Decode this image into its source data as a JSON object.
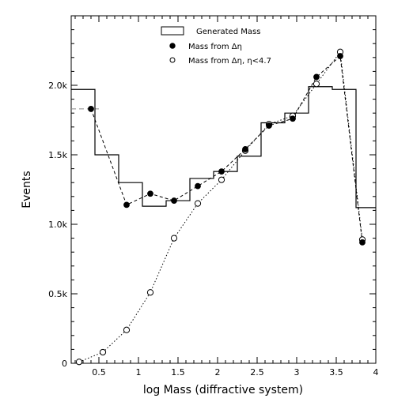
{
  "chart_data": {
    "type": "line",
    "title": "",
    "xlabel": "log Mass (diffractive system)",
    "ylabel": "Events",
    "xlim": [
      0.15,
      4.0
    ],
    "ylim": [
      0,
      2500
    ],
    "x_ticks": [
      {
        "v": 0.5,
        "label": "0.5"
      },
      {
        "v": 1.0,
        "label": "1"
      },
      {
        "v": 1.5,
        "label": "1.5"
      },
      {
        "v": 2.0,
        "label": "2"
      },
      {
        "v": 2.5,
        "label": "2.5"
      },
      {
        "v": 3.0,
        "label": "3"
      },
      {
        "v": 3.5,
        "label": "3.5"
      },
      {
        "v": 4.0,
        "label": "4"
      }
    ],
    "y_ticks": [
      {
        "v": 0,
        "label": "0"
      },
      {
        "v": 500,
        "label": "0.5k"
      },
      {
        "v": 1000,
        "label": "1.0k"
      },
      {
        "v": 1500,
        "label": "1.5k"
      },
      {
        "v": 2000,
        "label": "2.0k"
      }
    ],
    "legend_position": "top-center",
    "series": [
      {
        "name": "Generated Mass",
        "style": "histogram",
        "bin_edges": [
          0.15,
          0.45,
          0.75,
          1.05,
          1.35,
          1.65,
          1.95,
          2.25,
          2.55,
          2.85,
          3.15,
          3.45,
          3.75,
          4.0
        ],
        "values": [
          1970,
          1500,
          1300,
          1130,
          1170,
          1330,
          1380,
          1490,
          1730,
          1800,
          1990,
          1970,
          1120
        ]
      },
      {
        "name": "Mass from Δη",
        "style": "filled-dots-dashed",
        "x": [
          0.4,
          0.85,
          1.15,
          1.45,
          1.75,
          2.05,
          2.35,
          2.65,
          2.95,
          3.25,
          3.55,
          3.83
        ],
        "y": [
          1830,
          1140,
          1220,
          1170,
          1275,
          1380,
          1540,
          1710,
          1760,
          2060,
          2210,
          870
        ]
      },
      {
        "name": "Mass from Δη,  η<4.7",
        "style": "open-dots-dotted",
        "x": [
          0.25,
          0.55,
          0.85,
          1.15,
          1.45,
          1.75,
          2.05,
          2.35,
          2.65,
          2.95,
          3.25,
          3.55,
          3.83
        ],
        "y": [
          10,
          80,
          240,
          510,
          900,
          1150,
          1320,
          1530,
          1720,
          1780,
          2010,
          2240,
          890
        ]
      }
    ],
    "reference_line": {
      "y": 1830,
      "x_from": 0.15,
      "x_to": 0.5,
      "style": "dashed-gray"
    }
  }
}
